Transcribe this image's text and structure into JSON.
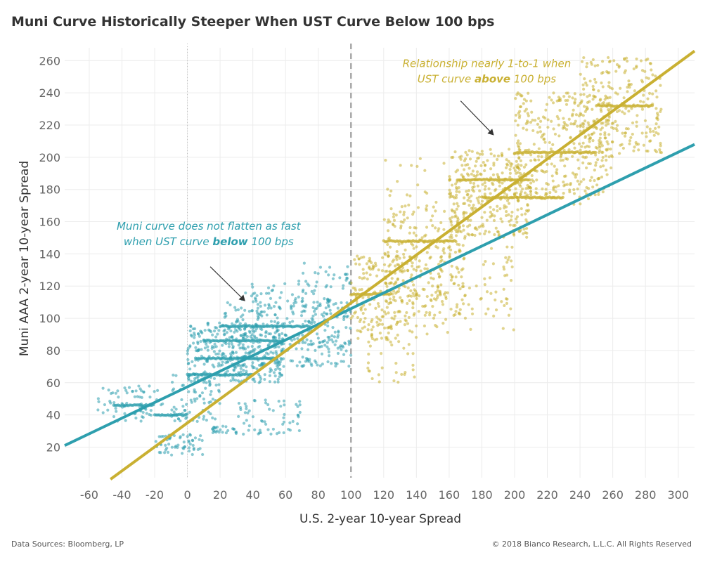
{
  "title": "Muni Curve Historically Steeper When UST Curve Below 100 bps",
  "footer": {
    "source": "Data Sources: Bloomberg, LP",
    "copyright": "© 2018 Bianco Research, L.L.C. All Rights Reserved"
  },
  "colors": {
    "below": "#2e9fae",
    "above": "#c9b032",
    "grid": "#ececec",
    "divider": "#a8a8a8",
    "arrow": "#333333"
  },
  "chart_data": {
    "type": "scatter",
    "title": "Muni Curve Historically Steeper When UST Curve Below 100 bps",
    "xlabel": "U.S. 2-year 10-year Spread",
    "ylabel": "Muni AAA 2-year 10-year Spread",
    "xlim": [
      -75,
      310
    ],
    "ylim": [
      1,
      268
    ],
    "x_ticks": [
      -60,
      -40,
      -20,
      0,
      20,
      40,
      60,
      80,
      100,
      120,
      140,
      160,
      180,
      200,
      220,
      240,
      260,
      280,
      300
    ],
    "y_ticks": [
      20,
      40,
      60,
      80,
      100,
      120,
      140,
      160,
      180,
      200,
      220,
      240,
      260
    ],
    "grid": true,
    "reference_lines": [
      {
        "axis": "x",
        "value": 0,
        "style": "dotted"
      },
      {
        "axis": "x",
        "value": 100,
        "style": "dashed"
      }
    ],
    "series": [
      {
        "regime": "below",
        "color": "#2e9fae",
        "points_clusters": [
          {
            "x": [
              -55,
              -15
            ],
            "y": [
              36,
              58
            ],
            "n": 70
          },
          {
            "x": [
              -20,
              10
            ],
            "y": [
              15,
              28
            ],
            "n": 60
          },
          {
            "x": [
              -10,
              20
            ],
            "y": [
              35,
              65
            ],
            "n": 80
          },
          {
            "x": [
              0,
              60
            ],
            "y": [
              60,
              98
            ],
            "n": 320
          },
          {
            "x": [
              20,
              100
            ],
            "y": [
              70,
              112
            ],
            "n": 280
          },
          {
            "x": [
              30,
              70
            ],
            "y": [
              28,
              50
            ],
            "n": 60
          },
          {
            "x": [
              70,
              100
            ],
            "y": [
              80,
              135
            ],
            "n": 80
          },
          {
            "x": [
              15,
              30
            ],
            "y": [
              28,
              33
            ],
            "n": 25
          },
          {
            "x": [
              35,
              75
            ],
            "y": [
              102,
              124
            ],
            "n": 45
          }
        ],
        "streaks": [
          {
            "x0": 20,
            "x1": 75,
            "y": 95
          },
          {
            "x0": 10,
            "x1": 60,
            "y": 86
          },
          {
            "x0": 5,
            "x1": 55,
            "y": 75
          },
          {
            "x0": 0,
            "x1": 40,
            "y": 65
          },
          {
            "x0": -45,
            "x1": -20,
            "y": 46
          },
          {
            "x0": -20,
            "x1": 0,
            "y": 40
          }
        ],
        "fit_line": {
          "x": [
            -75,
            310
          ],
          "y": [
            21,
            208
          ]
        }
      },
      {
        "regime": "above",
        "color": "#c9b032",
        "points_clusters": [
          {
            "x": [
              100,
              140
            ],
            "y": [
              85,
              140
            ],
            "n": 180
          },
          {
            "x": [
              120,
              170
            ],
            "y": [
              100,
              170
            ],
            "n": 240
          },
          {
            "x": [
              160,
              210
            ],
            "y": [
              150,
              205
            ],
            "n": 320
          },
          {
            "x": [
              200,
              260
            ],
            "y": [
              175,
              240
            ],
            "n": 320
          },
          {
            "x": [
              240,
              290
            ],
            "y": [
              200,
              262
            ],
            "n": 240
          },
          {
            "x": [
              140,
              200
            ],
            "y": [
              90,
              145
            ],
            "n": 90
          },
          {
            "x": [
              110,
              140
            ],
            "y": [
              60,
              100
            ],
            "n": 40
          },
          {
            "x": [
              120,
              250
            ],
            "y": [
              170,
              200
            ],
            "n": 50
          }
        ],
        "streaks": [
          {
            "x0": 165,
            "x1": 210,
            "y": 186
          },
          {
            "x0": 200,
            "x1": 250,
            "y": 203
          },
          {
            "x0": 120,
            "x1": 165,
            "y": 148
          },
          {
            "x0": 250,
            "x1": 285,
            "y": 232
          },
          {
            "x0": 100,
            "x1": 125,
            "y": 115
          },
          {
            "x0": 180,
            "x1": 230,
            "y": 175
          }
        ],
        "fit_line": {
          "x": [
            -47,
            310
          ],
          "y": [
            0,
            266
          ]
        }
      }
    ],
    "annotations": [
      {
        "id": "above",
        "lines": [
          "Relationship nearly 1-to-1 when",
          "UST curve above 100 bps"
        ],
        "bold_word": "above",
        "color": "#c9b032",
        "anchor_x": 183,
        "anchor_y": 256,
        "arrow_from": [
          167,
          235
        ],
        "arrow_to": [
          187,
          214
        ]
      },
      {
        "id": "below",
        "lines": [
          "Muni curve does not flatten as fast",
          "when UST curve below  100 bps"
        ],
        "bold_word": "below",
        "color": "#2e9fae",
        "anchor_x": 13,
        "anchor_y": 155,
        "arrow_from": [
          14,
          132
        ],
        "arrow_to": [
          35,
          111
        ]
      }
    ]
  }
}
